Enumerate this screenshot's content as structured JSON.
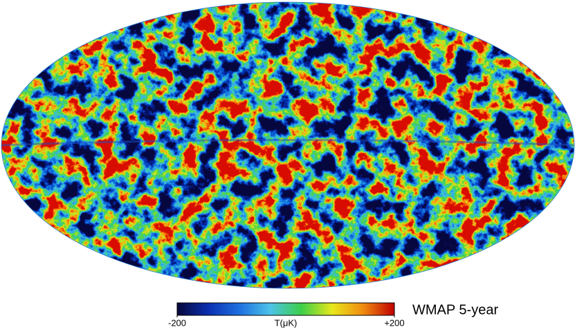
{
  "title": "WMAP 5-year",
  "colorbar": {
    "label": "T(μK)",
    "ticks": [
      -200,
      {
        "value": 200,
        "label": "+200"
      }
    ],
    "colors": [
      "#08083a",
      "#0a2fb0",
      "#1e6fe0",
      "#4cc3e8",
      "#3ccf4a",
      "#e8e81c",
      "#f08a10",
      "#c00000"
    ]
  }
}
